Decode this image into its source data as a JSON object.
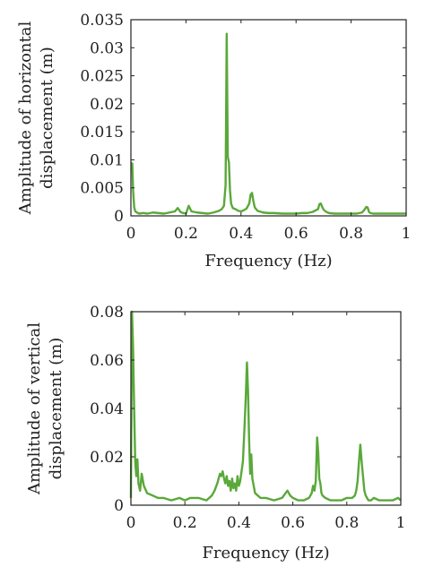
{
  "chart_data": [
    {
      "type": "line",
      "xlabel": "Frequency (Hz)",
      "ylabel_lines": [
        "Amplitude of horizontal",
        "displacement (m)"
      ],
      "xlim": [
        0,
        1
      ],
      "ylim": [
        0,
        0.035
      ],
      "xticks": [
        0,
        0.2,
        0.4,
        0.6,
        0.8,
        1
      ],
      "xtick_labels": [
        "0",
        "0.2",
        "0.4",
        "0.6",
        "0.8",
        "1"
      ],
      "yticks": [
        0,
        0.005,
        0.01,
        0.015,
        0.02,
        0.025,
        0.03,
        0.035
      ],
      "ytick_labels": [
        "0",
        "0.005",
        "0.01",
        "0.015",
        "0.02",
        "0.025",
        "0.03",
        "0.035"
      ],
      "grid": false,
      "series": [
        {
          "color": "#5aa83a",
          "x": [
            0.0,
            0.005,
            0.008,
            0.012,
            0.016,
            0.022,
            0.03,
            0.045,
            0.06,
            0.08,
            0.1,
            0.12,
            0.14,
            0.16,
            0.17,
            0.18,
            0.19,
            0.2,
            0.21,
            0.22,
            0.24,
            0.26,
            0.28,
            0.3,
            0.32,
            0.33,
            0.338,
            0.344,
            0.348,
            0.352,
            0.356,
            0.36,
            0.364,
            0.37,
            0.38,
            0.39,
            0.4,
            0.41,
            0.42,
            0.43,
            0.435,
            0.44,
            0.445,
            0.45,
            0.46,
            0.48,
            0.5,
            0.52,
            0.55,
            0.58,
            0.6,
            0.62,
            0.64,
            0.66,
            0.68,
            0.685,
            0.69,
            0.695,
            0.7,
            0.71,
            0.72,
            0.74,
            0.76,
            0.78,
            0.8,
            0.82,
            0.84,
            0.85,
            0.855,
            0.86,
            0.865,
            0.87,
            0.88,
            0.9,
            0.93,
            0.96,
            1.0
          ],
          "y": [
            0.0095,
            0.0093,
            0.0045,
            0.0015,
            0.0008,
            0.0006,
            0.0004,
            0.0005,
            0.0004,
            0.0006,
            0.0005,
            0.0004,
            0.0006,
            0.0008,
            0.0014,
            0.0007,
            0.0005,
            0.0004,
            0.0018,
            0.0008,
            0.0006,
            0.0005,
            0.0004,
            0.0006,
            0.0009,
            0.0012,
            0.0018,
            0.0055,
            0.0325,
            0.0105,
            0.0096,
            0.0045,
            0.0022,
            0.0014,
            0.0012,
            0.0009,
            0.0008,
            0.001,
            0.0013,
            0.0022,
            0.0038,
            0.0041,
            0.0026,
            0.0015,
            0.0009,
            0.0006,
            0.0005,
            0.0005,
            0.0004,
            0.0004,
            0.0004,
            0.0005,
            0.0005,
            0.0007,
            0.0012,
            0.0021,
            0.0022,
            0.0016,
            0.0011,
            0.0007,
            0.0005,
            0.0004,
            0.0004,
            0.0004,
            0.0004,
            0.0004,
            0.0006,
            0.0012,
            0.0016,
            0.0015,
            0.0007,
            0.0005,
            0.0004,
            0.0004,
            0.0004,
            0.0004,
            0.0004
          ]
        }
      ]
    },
    {
      "type": "line",
      "xlabel": "Frequency (Hz)",
      "ylabel_lines": [
        "Amplitude of vertical",
        "displacement (m)"
      ],
      "xlim": [
        0,
        1
      ],
      "ylim": [
        0,
        0.08
      ],
      "xticks": [
        0,
        0.2,
        0.4,
        0.6,
        0.8,
        1
      ],
      "xtick_labels": [
        "0",
        "0.2",
        "0.4",
        "0.6",
        "0.8",
        "1"
      ],
      "yticks": [
        0,
        0.02,
        0.04,
        0.06,
        0.08
      ],
      "ytick_labels": [
        "0",
        "0.02",
        "0.04",
        "0.06",
        "0.08"
      ],
      "grid": false,
      "series": [
        {
          "color": "#5aa83a",
          "x": [
            0.0,
            0.004,
            0.008,
            0.012,
            0.016,
            0.02,
            0.024,
            0.028,
            0.034,
            0.04,
            0.048,
            0.06,
            0.08,
            0.1,
            0.12,
            0.15,
            0.18,
            0.2,
            0.22,
            0.25,
            0.28,
            0.3,
            0.31,
            0.32,
            0.33,
            0.335,
            0.34,
            0.345,
            0.35,
            0.355,
            0.36,
            0.365,
            0.37,
            0.375,
            0.38,
            0.385,
            0.39,
            0.395,
            0.4,
            0.405,
            0.41,
            0.415,
            0.42,
            0.425,
            0.43,
            0.434,
            0.438,
            0.442,
            0.446,
            0.45,
            0.455,
            0.46,
            0.47,
            0.48,
            0.5,
            0.53,
            0.56,
            0.58,
            0.59,
            0.6,
            0.62,
            0.64,
            0.66,
            0.67,
            0.675,
            0.68,
            0.685,
            0.69,
            0.694,
            0.698,
            0.702,
            0.706,
            0.71,
            0.72,
            0.74,
            0.76,
            0.78,
            0.8,
            0.82,
            0.83,
            0.835,
            0.84,
            0.845,
            0.85,
            0.855,
            0.86,
            0.865,
            0.87,
            0.875,
            0.88,
            0.89,
            0.9,
            0.92,
            0.95,
            0.97,
            0.99,
            1.0
          ],
          "y": [
            0.003,
            0.08,
            0.065,
            0.04,
            0.018,
            0.012,
            0.019,
            0.009,
            0.006,
            0.013,
            0.008,
            0.005,
            0.004,
            0.003,
            0.003,
            0.002,
            0.003,
            0.002,
            0.003,
            0.003,
            0.002,
            0.004,
            0.006,
            0.009,
            0.013,
            0.012,
            0.014,
            0.011,
            0.009,
            0.012,
            0.008,
            0.01,
            0.006,
            0.011,
            0.007,
            0.009,
            0.006,
            0.012,
            0.008,
            0.01,
            0.014,
            0.018,
            0.03,
            0.043,
            0.059,
            0.047,
            0.027,
            0.013,
            0.021,
            0.011,
            0.008,
            0.005,
            0.004,
            0.003,
            0.003,
            0.002,
            0.003,
            0.006,
            0.004,
            0.003,
            0.002,
            0.002,
            0.003,
            0.005,
            0.008,
            0.006,
            0.01,
            0.028,
            0.022,
            0.011,
            0.009,
            0.005,
            0.004,
            0.003,
            0.002,
            0.002,
            0.002,
            0.003,
            0.003,
            0.004,
            0.006,
            0.01,
            0.018,
            0.025,
            0.018,
            0.012,
            0.006,
            0.004,
            0.003,
            0.002,
            0.002,
            0.003,
            0.002,
            0.002,
            0.002,
            0.003,
            0.002
          ]
        }
      ]
    }
  ]
}
